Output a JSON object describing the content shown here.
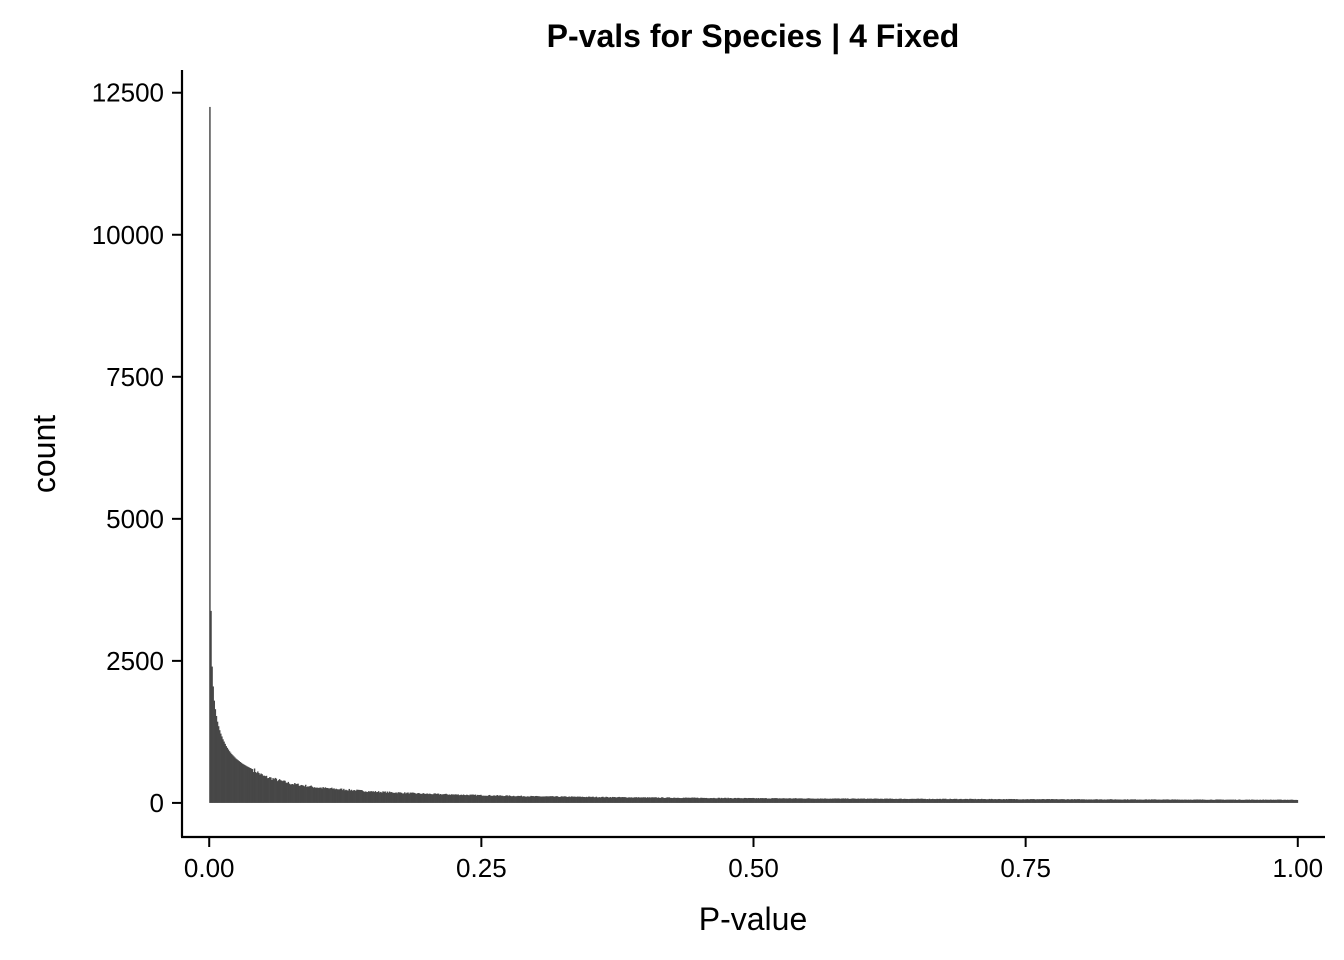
{
  "chart_data": {
    "type": "bar",
    "title": "P-vals for Species | 4 Fixed",
    "xlabel": "P-value",
    "ylabel": "count",
    "xlim": [
      -0.025,
      1.025
    ],
    "ylim": [
      -600,
      12900
    ],
    "x_ticks": [
      {
        "value": 0.0,
        "label": "0.00"
      },
      {
        "value": 0.25,
        "label": "0.25"
      },
      {
        "value": 0.5,
        "label": "0.50"
      },
      {
        "value": 0.75,
        "label": "0.75"
      },
      {
        "value": 1.0,
        "label": "1.00"
      }
    ],
    "y_ticks": [
      {
        "value": 0,
        "label": "0"
      },
      {
        "value": 2500,
        "label": "2500"
      },
      {
        "value": 5000,
        "label": "5000"
      },
      {
        "value": 7500,
        "label": "7500"
      },
      {
        "value": 10000,
        "label": "10000"
      },
      {
        "value": 12500,
        "label": "12500"
      }
    ],
    "bar_color": "#474747",
    "grid": false,
    "legend": "none",
    "bins": {
      "x_start": 0.0,
      "bin_width": 0.001,
      "counts_first_40": [
        12250,
        3380,
        2400,
        2050,
        1800,
        1650,
        1530,
        1430,
        1350,
        1280,
        1220,
        1170,
        1120,
        1080,
        1040,
        1000,
        970,
        940,
        910,
        885,
        860,
        840,
        820,
        800,
        780,
        765,
        750,
        735,
        720,
        705,
        690,
        680,
        668,
        656,
        645,
        635,
        625,
        615,
        605,
        596
      ],
      "tail_profile": [
        {
          "x": 0.04,
          "count": 590
        },
        {
          "x": 0.05,
          "count": 470
        },
        {
          "x": 0.075,
          "count": 340
        },
        {
          "x": 0.1,
          "count": 270
        },
        {
          "x": 0.15,
          "count": 200
        },
        {
          "x": 0.2,
          "count": 160
        },
        {
          "x": 0.25,
          "count": 135
        },
        {
          "x": 0.3,
          "count": 115
        },
        {
          "x": 0.4,
          "count": 95
        },
        {
          "x": 0.5,
          "count": 82
        },
        {
          "x": 0.6,
          "count": 74
        },
        {
          "x": 0.75,
          "count": 65
        },
        {
          "x": 0.9,
          "count": 58
        },
        {
          "x": 1.0,
          "count": 55
        }
      ]
    }
  }
}
